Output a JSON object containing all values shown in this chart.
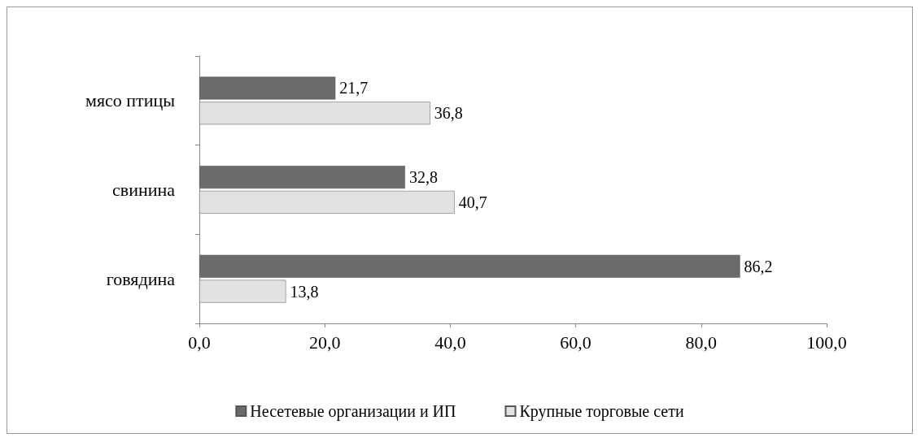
{
  "chart_data": {
    "type": "bar",
    "orientation": "horizontal",
    "categories": [
      "мясо птицы",
      "свинина",
      "говядина"
    ],
    "series": [
      {
        "name": "Несетевые организации и ИП",
        "color": "#6b6b6b",
        "values": [
          21.7,
          32.8,
          86.2
        ],
        "value_labels": [
          "21,7",
          "32,8",
          "86,2"
        ]
      },
      {
        "name": "Крупные торговые сети",
        "color": "#e2e2e2",
        "values": [
          36.8,
          40.7,
          13.8
        ],
        "value_labels": [
          "36,8",
          "40,7",
          "13,8"
        ]
      }
    ],
    "xlim": [
      0,
      100
    ],
    "xticks": [
      {
        "value": 0,
        "label": "0,0"
      },
      {
        "value": 20,
        "label": "20,0"
      },
      {
        "value": 40,
        "label": "40,0"
      },
      {
        "value": 60,
        "label": "60,0"
      },
      {
        "value": 80,
        "label": "80,0"
      },
      {
        "value": 100,
        "label": "100,0"
      }
    ],
    "grid": false,
    "legend": "bottom"
  }
}
